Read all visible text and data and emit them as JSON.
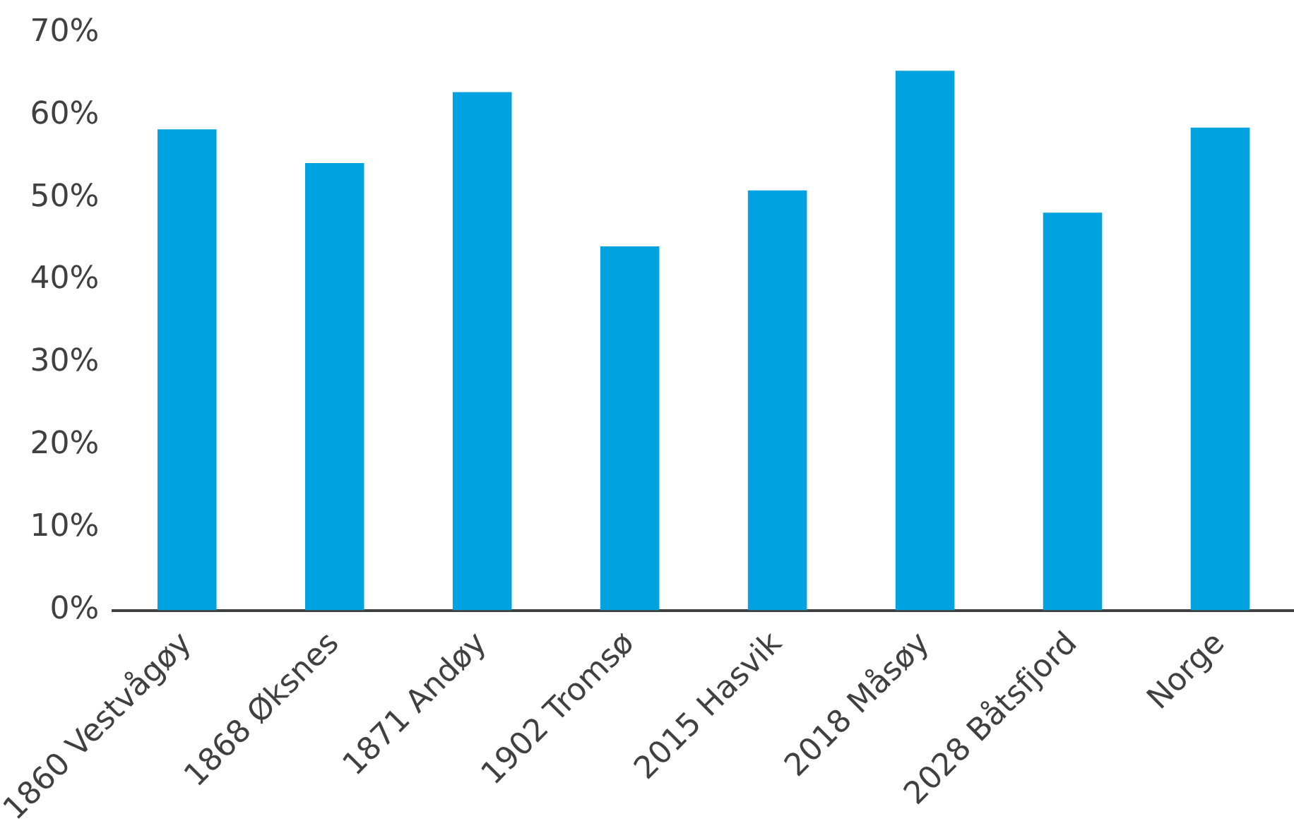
{
  "chart_data": {
    "type": "bar",
    "categories": [
      "1860 Vestvågøy",
      "1868 Øksnes",
      "1871 Andøy",
      "1902 Tromsø",
      "2015 Hasvik",
      "2018 Måsøy",
      "2028 Båtsfjord",
      "Norge"
    ],
    "values": [
      58.3,
      54.2,
      62.8,
      44.1,
      50.9,
      65.4,
      48.2,
      58.5
    ],
    "color": "#00a3e0",
    "ylim": [
      0,
      70
    ],
    "yticks": [
      {
        "value": 0,
        "label": "0%"
      },
      {
        "value": 10,
        "label": "10%"
      },
      {
        "value": 20,
        "label": "20%"
      },
      {
        "value": 30,
        "label": "30%"
      },
      {
        "value": 40,
        "label": "40%"
      },
      {
        "value": 50,
        "label": "50%"
      },
      {
        "value": 60,
        "label": "60%"
      },
      {
        "value": 70,
        "label": "70%"
      }
    ],
    "grid": false,
    "legend": false
  }
}
